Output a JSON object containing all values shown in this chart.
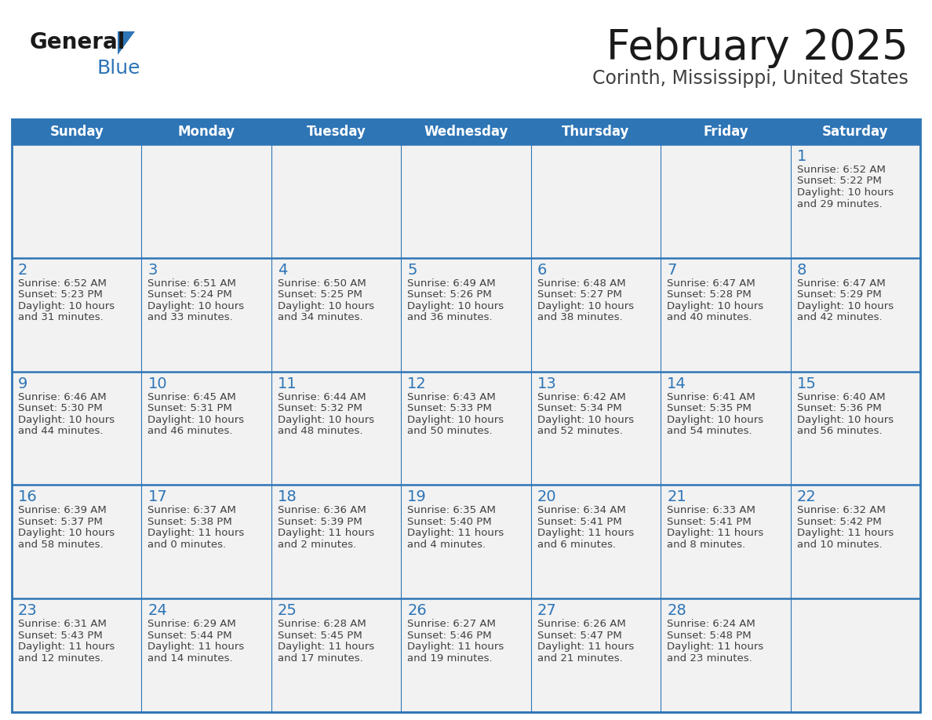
{
  "title": "February 2025",
  "subtitle": "Corinth, Mississippi, United States",
  "days_of_week": [
    "Sunday",
    "Monday",
    "Tuesday",
    "Wednesday",
    "Thursday",
    "Friday",
    "Saturday"
  ],
  "header_bg": "#2E75B6",
  "header_text": "#FFFFFF",
  "cell_bg_has_day": "#F2F2F2",
  "cell_bg_empty": "#F2F2F2",
  "cell_bg_noday_week0": "#F2F2F2",
  "border_color": "#2E75B6",
  "day_num_color": "#2E75B6",
  "info_text_color": "#404040",
  "title_color": "#1A1A1A",
  "subtitle_color": "#404040",
  "logo_general_color": "#1A1A1A",
  "logo_blue_color": "#2E75B6",
  "separator_color": "#2E75B6",
  "weeks": [
    [
      {
        "day": null,
        "info": ""
      },
      {
        "day": null,
        "info": ""
      },
      {
        "day": null,
        "info": ""
      },
      {
        "day": null,
        "info": ""
      },
      {
        "day": null,
        "info": ""
      },
      {
        "day": null,
        "info": ""
      },
      {
        "day": 1,
        "info": "Sunrise: 6:52 AM\nSunset: 5:22 PM\nDaylight: 10 hours\nand 29 minutes."
      }
    ],
    [
      {
        "day": 2,
        "info": "Sunrise: 6:52 AM\nSunset: 5:23 PM\nDaylight: 10 hours\nand 31 minutes."
      },
      {
        "day": 3,
        "info": "Sunrise: 6:51 AM\nSunset: 5:24 PM\nDaylight: 10 hours\nand 33 minutes."
      },
      {
        "day": 4,
        "info": "Sunrise: 6:50 AM\nSunset: 5:25 PM\nDaylight: 10 hours\nand 34 minutes."
      },
      {
        "day": 5,
        "info": "Sunrise: 6:49 AM\nSunset: 5:26 PM\nDaylight: 10 hours\nand 36 minutes."
      },
      {
        "day": 6,
        "info": "Sunrise: 6:48 AM\nSunset: 5:27 PM\nDaylight: 10 hours\nand 38 minutes."
      },
      {
        "day": 7,
        "info": "Sunrise: 6:47 AM\nSunset: 5:28 PM\nDaylight: 10 hours\nand 40 minutes."
      },
      {
        "day": 8,
        "info": "Sunrise: 6:47 AM\nSunset: 5:29 PM\nDaylight: 10 hours\nand 42 minutes."
      }
    ],
    [
      {
        "day": 9,
        "info": "Sunrise: 6:46 AM\nSunset: 5:30 PM\nDaylight: 10 hours\nand 44 minutes."
      },
      {
        "day": 10,
        "info": "Sunrise: 6:45 AM\nSunset: 5:31 PM\nDaylight: 10 hours\nand 46 minutes."
      },
      {
        "day": 11,
        "info": "Sunrise: 6:44 AM\nSunset: 5:32 PM\nDaylight: 10 hours\nand 48 minutes."
      },
      {
        "day": 12,
        "info": "Sunrise: 6:43 AM\nSunset: 5:33 PM\nDaylight: 10 hours\nand 50 minutes."
      },
      {
        "day": 13,
        "info": "Sunrise: 6:42 AM\nSunset: 5:34 PM\nDaylight: 10 hours\nand 52 minutes."
      },
      {
        "day": 14,
        "info": "Sunrise: 6:41 AM\nSunset: 5:35 PM\nDaylight: 10 hours\nand 54 minutes."
      },
      {
        "day": 15,
        "info": "Sunrise: 6:40 AM\nSunset: 5:36 PM\nDaylight: 10 hours\nand 56 minutes."
      }
    ],
    [
      {
        "day": 16,
        "info": "Sunrise: 6:39 AM\nSunset: 5:37 PM\nDaylight: 10 hours\nand 58 minutes."
      },
      {
        "day": 17,
        "info": "Sunrise: 6:37 AM\nSunset: 5:38 PM\nDaylight: 11 hours\nand 0 minutes."
      },
      {
        "day": 18,
        "info": "Sunrise: 6:36 AM\nSunset: 5:39 PM\nDaylight: 11 hours\nand 2 minutes."
      },
      {
        "day": 19,
        "info": "Sunrise: 6:35 AM\nSunset: 5:40 PM\nDaylight: 11 hours\nand 4 minutes."
      },
      {
        "day": 20,
        "info": "Sunrise: 6:34 AM\nSunset: 5:41 PM\nDaylight: 11 hours\nand 6 minutes."
      },
      {
        "day": 21,
        "info": "Sunrise: 6:33 AM\nSunset: 5:41 PM\nDaylight: 11 hours\nand 8 minutes."
      },
      {
        "day": 22,
        "info": "Sunrise: 6:32 AM\nSunset: 5:42 PM\nDaylight: 11 hours\nand 10 minutes."
      }
    ],
    [
      {
        "day": 23,
        "info": "Sunrise: 6:31 AM\nSunset: 5:43 PM\nDaylight: 11 hours\nand 12 minutes."
      },
      {
        "day": 24,
        "info": "Sunrise: 6:29 AM\nSunset: 5:44 PM\nDaylight: 11 hours\nand 14 minutes."
      },
      {
        "day": 25,
        "info": "Sunrise: 6:28 AM\nSunset: 5:45 PM\nDaylight: 11 hours\nand 17 minutes."
      },
      {
        "day": 26,
        "info": "Sunrise: 6:27 AM\nSunset: 5:46 PM\nDaylight: 11 hours\nand 19 minutes."
      },
      {
        "day": 27,
        "info": "Sunrise: 6:26 AM\nSunset: 5:47 PM\nDaylight: 11 hours\nand 21 minutes."
      },
      {
        "day": 28,
        "info": "Sunrise: 6:24 AM\nSunset: 5:48 PM\nDaylight: 11 hours\nand 23 minutes."
      },
      {
        "day": null,
        "info": ""
      }
    ]
  ],
  "fig_width": 11.88,
  "fig_height": 9.18,
  "dpi": 100
}
